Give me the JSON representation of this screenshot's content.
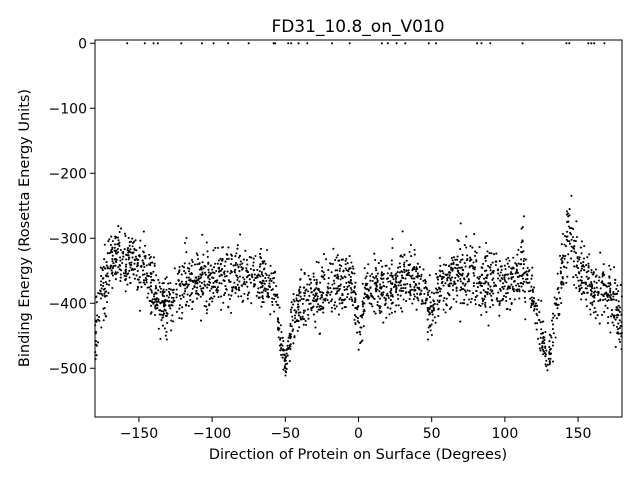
{
  "chart_data": {
    "type": "scatter",
    "title": "FD31_10.8_on_V010",
    "xlabel": "Direction of Protein on Surface (Degrees)",
    "ylabel": "Binding Energy (Rosetta Energy Units)",
    "xlim": [
      -180,
      180
    ],
    "ylim": [
      -575,
      5
    ],
    "xticks": [
      -150,
      -100,
      -50,
      0,
      50,
      100,
      150
    ],
    "yticks": [
      0,
      -100,
      -200,
      -300,
      -400,
      -500
    ],
    "xtick_labels": [
      "−150",
      "−100",
      "−50",
      "0",
      "50",
      "100",
      "150"
    ],
    "ytick_labels": [
      "0",
      "−100",
      "−200",
      "−300",
      "−400",
      "−500"
    ],
    "grid": false,
    "marker_color": "#000000",
    "zero_points_x": [
      -158,
      -146,
      -140,
      -137,
      -121,
      -107,
      -99,
      -89,
      -75,
      -58,
      -57,
      -48,
      -46,
      -41,
      -35,
      -18,
      -6,
      16,
      20,
      26,
      32,
      48,
      53,
      81,
      84,
      90,
      112,
      142,
      144,
      157,
      159,
      161,
      168
    ],
    "profile": [
      {
        "x": -180,
        "mean": -440,
        "spread": 50
      },
      {
        "x": -176,
        "mean": -380,
        "spread": 55
      },
      {
        "x": -168,
        "mean": -330,
        "spread": 45
      },
      {
        "x": -155,
        "mean": -335,
        "spread": 40
      },
      {
        "x": -145,
        "mean": -345,
        "spread": 45
      },
      {
        "x": -138,
        "mean": -390,
        "spread": 40
      },
      {
        "x": -132,
        "mean": -410,
        "spread": 40
      },
      {
        "x": -125,
        "mean": -385,
        "spread": 40
      },
      {
        "x": -115,
        "mean": -370,
        "spread": 45
      },
      {
        "x": -105,
        "mean": -365,
        "spread": 45
      },
      {
        "x": -95,
        "mean": -360,
        "spread": 45
      },
      {
        "x": -85,
        "mean": -355,
        "spread": 45
      },
      {
        "x": -75,
        "mean": -355,
        "spread": 40
      },
      {
        "x": -65,
        "mean": -360,
        "spread": 40
      },
      {
        "x": -57,
        "mean": -380,
        "spread": 35
      },
      {
        "x": -52,
        "mean": -470,
        "spread": 30
      },
      {
        "x": -50,
        "mean": -495,
        "spread": 25
      },
      {
        "x": -46,
        "mean": -440,
        "spread": 35
      },
      {
        "x": -40,
        "mean": -390,
        "spread": 40
      },
      {
        "x": -32,
        "mean": -405,
        "spread": 40
      },
      {
        "x": -25,
        "mean": -385,
        "spread": 45
      },
      {
        "x": -15,
        "mean": -370,
        "spread": 40
      },
      {
        "x": -5,
        "mean": -360,
        "spread": 40
      },
      {
        "x": -1,
        "mean": -420,
        "spread": 35
      },
      {
        "x": 1,
        "mean": -440,
        "spread": 30
      },
      {
        "x": 5,
        "mean": -380,
        "spread": 40
      },
      {
        "x": 15,
        "mean": -380,
        "spread": 40
      },
      {
        "x": 25,
        "mean": -370,
        "spread": 40
      },
      {
        "x": 35,
        "mean": -355,
        "spread": 40
      },
      {
        "x": 45,
        "mean": -390,
        "spread": 45
      },
      {
        "x": 50,
        "mean": -420,
        "spread": 35
      },
      {
        "x": 55,
        "mean": -380,
        "spread": 40
      },
      {
        "x": 65,
        "mean": -360,
        "spread": 45
      },
      {
        "x": 75,
        "mean": -350,
        "spread": 45
      },
      {
        "x": 85,
        "mean": -360,
        "spread": 45
      },
      {
        "x": 95,
        "mean": -370,
        "spread": 40
      },
      {
        "x": 105,
        "mean": -370,
        "spread": 40
      },
      {
        "x": 112,
        "mean": -340,
        "spread": 50
      },
      {
        "x": 118,
        "mean": -380,
        "spread": 40
      },
      {
        "x": 124,
        "mean": -440,
        "spread": 35
      },
      {
        "x": 130,
        "mean": -490,
        "spread": 35
      },
      {
        "x": 134,
        "mean": -420,
        "spread": 40
      },
      {
        "x": 140,
        "mean": -330,
        "spread": 50
      },
      {
        "x": 145,
        "mean": -290,
        "spread": 50
      },
      {
        "x": 152,
        "mean": -360,
        "spread": 45
      },
      {
        "x": 160,
        "mean": -375,
        "spread": 40
      },
      {
        "x": 170,
        "mean": -380,
        "spread": 40
      },
      {
        "x": 176,
        "mean": -400,
        "spread": 45
      },
      {
        "x": 180,
        "mean": -430,
        "spread": 45
      }
    ]
  }
}
